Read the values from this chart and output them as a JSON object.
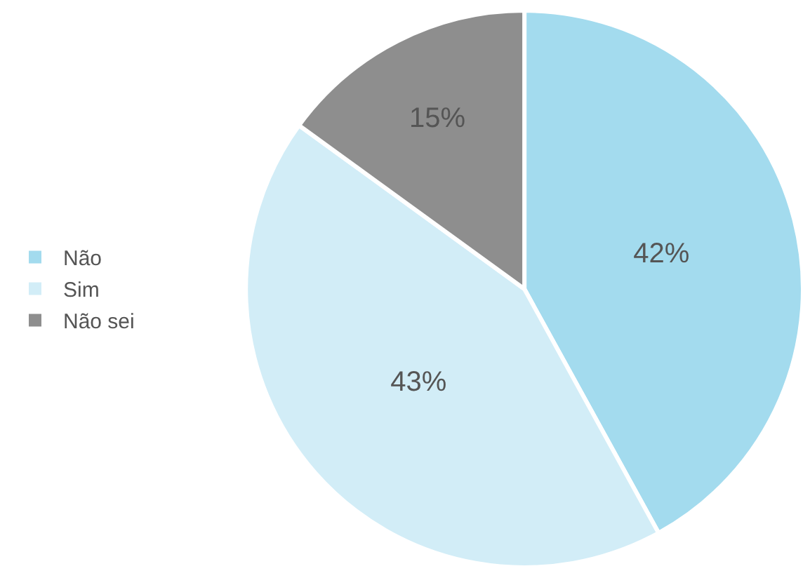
{
  "chart_data": {
    "type": "pie",
    "categories": [
      "Não",
      "Sim",
      "Não sei"
    ],
    "values": [
      42,
      43,
      15
    ],
    "colors": [
      "#a3dbee",
      "#d2edf7",
      "#8e8e8e"
    ],
    "value_labels": [
      "42%",
      "43%",
      "15%"
    ],
    "legend": "left"
  }
}
